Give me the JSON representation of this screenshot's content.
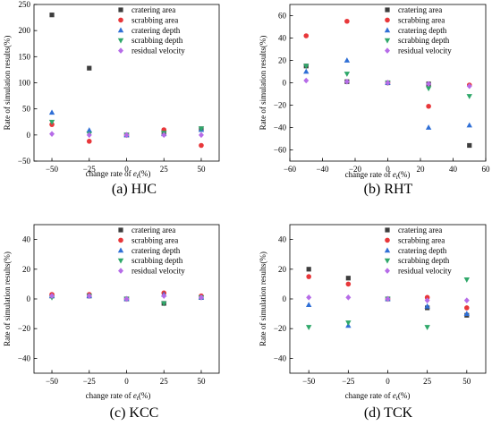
{
  "legend": [
    "cratering area",
    "scrabbing area",
    "cratering depth",
    "scrabbing depth",
    "residual velocity"
  ],
  "markers": {
    "cratering area": {
      "shape": "square",
      "color": "#3d3d3d"
    },
    "scrabbing area": {
      "shape": "circle",
      "color": "#e8373a"
    },
    "cratering depth": {
      "shape": "triangle-up",
      "color": "#2f6fd6"
    },
    "scrabbing depth": {
      "shape": "triangle-down",
      "color": "#2fa86a"
    },
    "residual velocity": {
      "shape": "diamond",
      "color": "#b66ce8"
    }
  },
  "chart_data": [
    {
      "type": "scatter",
      "caption": "(a) HJC",
      "xlabel": "change rate of e_t(%)",
      "xlabel_main": "change rate of",
      "xlabel_var": "e",
      "xlabel_sub": "t",
      "xlabel_unit": "(%)",
      "ylabel": "Rate of simulation results(%)",
      "x_ticks": [
        -50,
        -25,
        0,
        25,
        50
      ],
      "x_tick_labels": [
        "−50",
        "−25",
        "0",
        "25",
        "50"
      ],
      "y_ticks": [
        -50,
        0,
        50,
        100,
        150,
        200,
        250
      ],
      "y_tick_labels": [
        "−50",
        "0",
        "50",
        "100",
        "150",
        "200",
        "250"
      ],
      "xlim": [
        -62,
        62
      ],
      "ylim": [
        -50,
        250
      ],
      "series": [
        {
          "name": "cratering area",
          "x": [
            -50,
            -25,
            0,
            25,
            50
          ],
          "y": [
            230,
            128,
            0,
            5,
            12
          ]
        },
        {
          "name": "scrabbing area",
          "x": [
            -50,
            -25,
            0,
            25,
            50
          ],
          "y": [
            20,
            -12,
            0,
            10,
            -20
          ]
        },
        {
          "name": "cratering depth",
          "x": [
            -50,
            -25,
            0,
            25,
            50
          ],
          "y": [
            43,
            9,
            0,
            2,
            10
          ]
        },
        {
          "name": "scrabbing depth",
          "x": [
            -50,
            -25,
            0,
            25,
            50
          ],
          "y": [
            25,
            2,
            0,
            4,
            12
          ]
        },
        {
          "name": "residual velocity",
          "x": [
            -50,
            -25,
            0,
            25,
            50
          ],
          "y": [
            2,
            0,
            0,
            0,
            0
          ]
        }
      ]
    },
    {
      "type": "scatter",
      "caption": "(b) RHT",
      "xlabel": "change rate of e_t(%)",
      "xlabel_main": "change rate of",
      "xlabel_var": "e",
      "xlabel_sub": "t",
      "xlabel_unit": "(%)",
      "ylabel": "Rate of simulation results(%)",
      "x_ticks": [
        -60,
        -40,
        -20,
        0,
        20,
        40,
        60
      ],
      "x_tick_labels": [
        "−60",
        "−40",
        "−20",
        "0",
        "20",
        "40",
        "60"
      ],
      "y_ticks": [
        -60,
        -40,
        -20,
        0,
        20,
        40,
        60
      ],
      "y_tick_labels": [
        "−60",
        "−40",
        "−20",
        "0",
        "20",
        "40",
        "60"
      ],
      "xlim": [
        -60,
        60
      ],
      "ylim": [
        -70,
        70
      ],
      "series": [
        {
          "name": "cratering area",
          "x": [
            -50,
            -25,
            0,
            25,
            50
          ],
          "y": [
            15,
            1,
            0,
            -1,
            -56
          ]
        },
        {
          "name": "scrabbing area",
          "x": [
            -50,
            -25,
            0,
            25,
            50
          ],
          "y": [
            42,
            55,
            0,
            -21,
            -2
          ]
        },
        {
          "name": "cratering depth",
          "x": [
            -50,
            -25,
            0,
            25,
            50
          ],
          "y": [
            10,
            20,
            0,
            -40,
            -38
          ]
        },
        {
          "name": "scrabbing depth",
          "x": [
            -50,
            -25,
            0,
            25,
            50
          ],
          "y": [
            15,
            8,
            0,
            -5,
            -12
          ]
        },
        {
          "name": "residual velocity",
          "x": [
            -50,
            -25,
            0,
            25,
            50
          ],
          "y": [
            2,
            1,
            0,
            -1,
            -3
          ]
        }
      ]
    },
    {
      "type": "scatter",
      "caption": "(c) KCC",
      "xlabel": "change rate of e_t(%)",
      "xlabel_main": "change rate of",
      "xlabel_var": "e",
      "xlabel_sub": "t",
      "xlabel_unit": "(%)",
      "ylabel": "Rate of simulation results(%)",
      "x_ticks": [
        -50,
        -25,
        0,
        25,
        50
      ],
      "x_tick_labels": [
        "−50",
        "−25",
        "0",
        "25",
        "50"
      ],
      "y_ticks": [
        -40,
        -20,
        0,
        20,
        40
      ],
      "y_tick_labels": [
        "−40",
        "−20",
        "0",
        "20",
        "40"
      ],
      "xlim": [
        -62,
        62
      ],
      "ylim": [
        -50,
        50
      ],
      "series": [
        {
          "name": "cratering area",
          "x": [
            -50,
            -25,
            0,
            25,
            50
          ],
          "y": [
            2,
            2,
            0,
            -3,
            1
          ]
        },
        {
          "name": "scrabbing area",
          "x": [
            -50,
            -25,
            0,
            25,
            50
          ],
          "y": [
            3,
            3,
            0,
            4,
            2
          ]
        },
        {
          "name": "cratering depth",
          "x": [
            -50,
            -25,
            0,
            25,
            50
          ],
          "y": [
            2,
            2,
            0,
            3,
            1
          ]
        },
        {
          "name": "scrabbing depth",
          "x": [
            -50,
            -25,
            0,
            25,
            50
          ],
          "y": [
            1,
            2,
            0,
            -3,
            1
          ]
        },
        {
          "name": "residual velocity",
          "x": [
            -50,
            -25,
            0,
            25,
            50
          ],
          "y": [
            2,
            2,
            0,
            2,
            1
          ]
        }
      ]
    },
    {
      "type": "scatter",
      "caption": "(d) TCK",
      "xlabel": "change rate of e_t(%)",
      "xlabel_main": "change rate of",
      "xlabel_var": "e",
      "xlabel_sub": "t",
      "xlabel_unit": "(%)",
      "ylabel": "Rate of simulation results(%)",
      "x_ticks": [
        -50,
        -25,
        0,
        25,
        50
      ],
      "x_tick_labels": [
        "−50",
        "−25",
        "0",
        "25",
        "50"
      ],
      "y_ticks": [
        -40,
        -20,
        0,
        20,
        40
      ],
      "y_tick_labels": [
        "−40",
        "−20",
        "0",
        "20",
        "40"
      ],
      "xlim": [
        -62,
        62
      ],
      "ylim": [
        -50,
        50
      ],
      "series": [
        {
          "name": "cratering area",
          "x": [
            -50,
            -25,
            0,
            25,
            50
          ],
          "y": [
            20,
            14,
            0,
            -6,
            -11
          ]
        },
        {
          "name": "scrabbing area",
          "x": [
            -50,
            -25,
            0,
            25,
            50
          ],
          "y": [
            15,
            10,
            0,
            1,
            -6
          ]
        },
        {
          "name": "cratering depth",
          "x": [
            -50,
            -25,
            0,
            25,
            50
          ],
          "y": [
            -4,
            -18,
            0,
            -5,
            -10
          ]
        },
        {
          "name": "scrabbing depth",
          "x": [
            -50,
            -25,
            0,
            25,
            50
          ],
          "y": [
            -19,
            -16,
            0,
            -19,
            13
          ]
        },
        {
          "name": "residual velocity",
          "x": [
            -50,
            -25,
            0,
            25,
            50
          ],
          "y": [
            1,
            1,
            0,
            -1,
            -1
          ]
        }
      ]
    }
  ]
}
